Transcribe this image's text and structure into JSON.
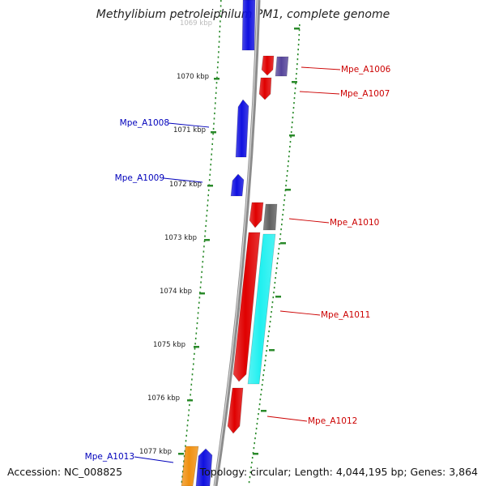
{
  "title": "Methylibium petroleiphilum PM1, complete genome",
  "footer": {
    "accession": "Accession: NC_008825",
    "topology": "Topology: circular; Length: 4,044,195 bp; Genes: 3,864"
  },
  "ruler_labels": [
    "1069 kbp",
    "1070 kbp",
    "1071 kbp",
    "1072 kbp",
    "1073 kbp",
    "1074 kbp",
    "1075 kbp",
    "1076 kbp",
    "1077 kbp"
  ],
  "gene_labels": [
    "Mpe_A1006",
    "Mpe_A1007",
    "Mpe_A1008",
    "Mpe_A1009",
    "Mpe_A1010",
    "Mpe_A1011",
    "Mpe_A1012",
    "Mpe_A1013"
  ],
  "colors": {
    "forward_strand": "#1010e0",
    "reverse_strand": "#e00000",
    "dark_gray": "#606060",
    "purple": "#55449a",
    "cyan": "#20f0f0",
    "orange": "#f09010",
    "tick_green": "#2a8a2a",
    "backbone": "#8c8c8c"
  }
}
